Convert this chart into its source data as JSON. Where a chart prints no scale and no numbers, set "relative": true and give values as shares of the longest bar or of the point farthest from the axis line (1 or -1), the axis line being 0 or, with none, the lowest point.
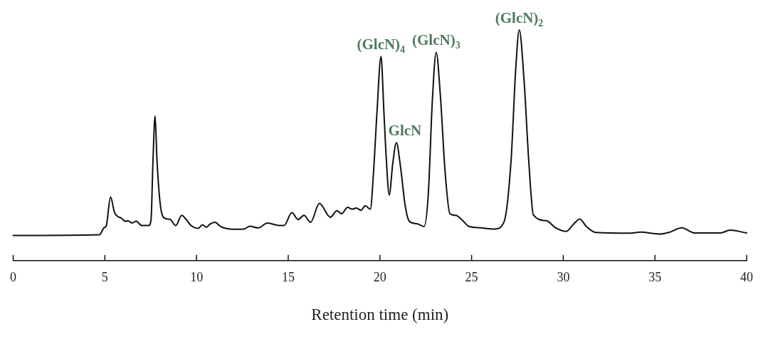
{
  "chart_data": {
    "type": "line",
    "xlabel": "Retention time (min)",
    "xlim": [
      0,
      40
    ],
    "xticks": [
      0,
      5,
      10,
      15,
      20,
      25,
      30,
      35,
      40
    ],
    "relative": true,
    "marker": "none",
    "color": "#111111",
    "x": [
      0,
      4.7,
      4.95,
      5.08,
      5.31,
      5.53,
      5.92,
      6.12,
      6.24,
      6.49,
      6.71,
      7.01,
      7.39,
      7.52,
      7.62,
      7.74,
      7.84,
      8.03,
      8.29,
      8.55,
      8.87,
      9.19,
      9.44,
      9.7,
      10.09,
      10.32,
      10.54,
      10.73,
      11.01,
      11.31,
      11.63,
      12.01,
      12.59,
      12.91,
      13.36,
      13.87,
      14.51,
      14.77,
      15.2,
      15.54,
      15.86,
      16.22,
      16.7,
      17.3,
      17.66,
      17.91,
      18.24,
      18.49,
      18.72,
      18.97,
      19.2,
      19.48,
      19.65,
      19.84,
      20.06,
      20.22,
      20.35,
      20.51,
      20.7,
      20.9,
      21.12,
      21.38,
      21.61,
      22.02,
      22.41,
      22.64,
      22.86,
      23.07,
      23.3,
      23.56,
      23.82,
      24.14,
      24.46,
      24.84,
      25.49,
      26.26,
      26.77,
      27.15,
      27.41,
      27.6,
      27.86,
      28.12,
      28.37,
      29.08,
      29.59,
      30.17,
      30.56,
      30.9,
      31.26,
      31.77,
      33.7,
      34.21,
      35.24,
      35.75,
      36.46,
      37.16,
      38.58,
      39.09,
      40
    ],
    "values": [
      0.109,
      0.112,
      0.142,
      0.152,
      0.276,
      0.208,
      0.183,
      0.17,
      0.173,
      0.163,
      0.171,
      0.152,
      0.152,
      0.178,
      0.421,
      0.627,
      0.44,
      0.239,
      0.183,
      0.179,
      0.152,
      0.196,
      0.178,
      0.152,
      0.14,
      0.155,
      0.145,
      0.158,
      0.166,
      0.148,
      0.139,
      0.136,
      0.137,
      0.149,
      0.142,
      0.163,
      0.152,
      0.152,
      0.208,
      0.178,
      0.196,
      0.166,
      0.248,
      0.188,
      0.216,
      0.203,
      0.231,
      0.223,
      0.228,
      0.218,
      0.238,
      0.223,
      0.38,
      0.642,
      0.885,
      0.642,
      0.44,
      0.284,
      0.42,
      0.511,
      0.41,
      0.238,
      0.17,
      0.16,
      0.148,
      0.289,
      0.693,
      0.903,
      0.713,
      0.38,
      0.203,
      0.196,
      0.178,
      0.149,
      0.142,
      0.137,
      0.168,
      0.43,
      0.834,
      1,
      0.784,
      0.43,
      0.198,
      0.173,
      0.142,
      0.127,
      0.158,
      0.18,
      0.148,
      0.122,
      0.119,
      0.124,
      0.115,
      0.122,
      0.142,
      0.12,
      0.12,
      0.132,
      0.12
    ],
    "annotations": [
      {
        "text": "(GlcN)$_{4}$",
        "x": 20.06,
        "y": 0.885
      },
      {
        "text": "GlcN",
        "x": 20.9,
        "y": 0.511
      },
      {
        "text": "(GlcN)$_{3}$",
        "x": 23.07,
        "y": 0.903
      },
      {
        "text": "(GlcN)$_{2}$",
        "x": 27.6,
        "y": 1
      }
    ]
  }
}
